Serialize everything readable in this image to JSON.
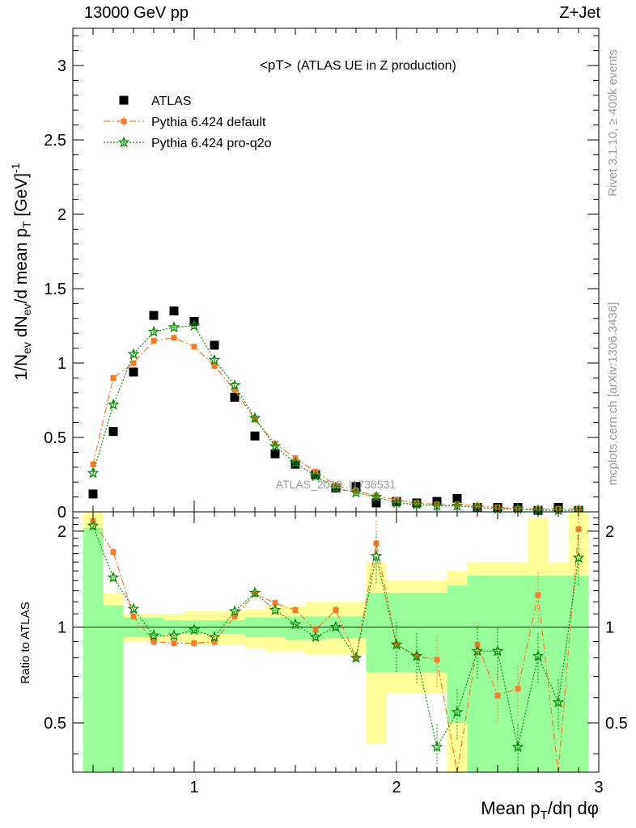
{
  "header": {
    "left": "13000 GeV pp",
    "right": "Z+Jet"
  },
  "side": {
    "rivet": "Rivet 3.1.10, ≥ 400k events",
    "mcplots": "mcplots.cern.ch [arXiv:1306.3436]"
  },
  "chart_data": [
    {
      "type": "scatter",
      "title_main": "<pT>",
      "title_sub": "(ATLAS UE in Z production)",
      "ylabel": "1/N_ev dN_ev/d mean p_T [GeV]^-1",
      "watermark": "ATLAS_2019_I1736531",
      "xlim": [
        0.4,
        3.0
      ],
      "ylim": [
        0,
        3.25
      ],
      "y_ticks": [
        0,
        0.5,
        1,
        1.5,
        2,
        2.5,
        3
      ],
      "y_tick_labels": [
        "0",
        "0.5",
        "1",
        "1.5",
        "2",
        "2.5",
        "3"
      ],
      "legend_position": "top-left",
      "x": [
        0.5,
        0.6,
        0.7,
        0.8,
        0.9,
        1.0,
        1.1,
        1.2,
        1.3,
        1.4,
        1.5,
        1.6,
        1.7,
        1.8,
        1.9,
        2.0,
        2.1,
        2.2,
        2.3,
        2.4,
        2.5,
        2.6,
        2.7,
        2.8,
        2.9
      ],
      "series": [
        {
          "name": "ATLAS",
          "color": "#000000",
          "marker": "square",
          "values": [
            0.12,
            0.54,
            0.94,
            1.32,
            1.35,
            1.28,
            1.12,
            0.77,
            0.51,
            0.39,
            0.32,
            0.25,
            0.16,
            0.17,
            0.06,
            0.07,
            0.06,
            0.07,
            0.09,
            0.03,
            0.03,
            0.03,
            0.01,
            0.03,
            0.01
          ]
        },
        {
          "name": "Pythia 6.424 default",
          "color": "#f27d2f",
          "marker": "square",
          "dash": "8,3,2,3",
          "values": [
            0.32,
            0.9,
            1.0,
            1.15,
            1.17,
            1.11,
            0.98,
            0.82,
            0.62,
            0.46,
            0.36,
            0.27,
            0.18,
            0.14,
            0.11,
            0.08,
            0.06,
            0.05,
            0.05,
            0.04,
            0.03,
            0.02,
            0.02,
            0.02,
            0.02
          ]
        },
        {
          "name": "Pythia 6.424 pro-q2o",
          "color": "#0f8a0f",
          "marker": "star",
          "dash": "2,2",
          "values": [
            0.26,
            0.72,
            1.06,
            1.21,
            1.24,
            1.25,
            1.02,
            0.85,
            0.63,
            0.44,
            0.33,
            0.24,
            0.16,
            0.13,
            0.1,
            0.06,
            0.05,
            0.04,
            0.04,
            0.03,
            0.02,
            0.02,
            0.01,
            0.01,
            0.01
          ]
        }
      ]
    },
    {
      "type": "scatter",
      "ylabel": "Ratio to ATLAS",
      "xlabel": "Mean p_T/dη dφ",
      "xlim": [
        0.4,
        3.0
      ],
      "ylim": [
        0.35,
        2.3
      ],
      "x_ticks": [
        1,
        2,
        3
      ],
      "x_tick_labels": [
        "1",
        "2",
        "3"
      ],
      "y_ticks": [
        0.5,
        1,
        2
      ],
      "y_tick_labels": [
        "0.5",
        "1",
        "2"
      ],
      "x": [
        0.5,
        0.6,
        0.7,
        0.8,
        0.9,
        1.0,
        1.1,
        1.2,
        1.3,
        1.4,
        1.5,
        1.6,
        1.7,
        1.8,
        1.9,
        2.0,
        2.1,
        2.2,
        2.3,
        2.4,
        2.5,
        2.6,
        2.7,
        2.8,
        2.9
      ],
      "bands": {
        "bin_edges": [
          0.45,
          0.55,
          0.65,
          0.75,
          0.85,
          0.95,
          1.05,
          1.15,
          1.25,
          1.35,
          1.45,
          1.55,
          1.65,
          1.75,
          1.85,
          1.95,
          2.05,
          2.15,
          2.25,
          2.35,
          2.45,
          2.55,
          2.65,
          2.75,
          2.85,
          2.95
        ],
        "stat_low": [
          0.35,
          0.35,
          0.93,
          0.93,
          0.95,
          0.95,
          0.95,
          0.95,
          0.93,
          0.93,
          0.91,
          0.91,
          0.92,
          0.92,
          0.72,
          0.72,
          0.72,
          0.72,
          0.5,
          0.35,
          0.35,
          0.35,
          0.35,
          0.35,
          0.35
        ],
        "stat_high": [
          2.05,
          1.17,
          1.07,
          1.07,
          1.05,
          1.05,
          1.05,
          1.05,
          1.07,
          1.07,
          1.08,
          1.08,
          1.08,
          1.08,
          1.28,
          1.28,
          1.28,
          1.28,
          1.35,
          1.45,
          1.45,
          1.45,
          1.45,
          1.45,
          1.45
        ],
        "total_low": [
          0.35,
          0.8,
          0.9,
          0.9,
          0.9,
          0.88,
          0.88,
          0.88,
          0.86,
          0.84,
          0.84,
          0.82,
          0.82,
          0.82,
          0.43,
          0.62,
          0.62,
          0.62,
          0.35,
          0.35,
          0.35,
          0.35,
          0.35,
          0.35,
          0.35
        ],
        "total_high": [
          2.3,
          1.28,
          1.1,
          1.1,
          1.1,
          1.12,
          1.12,
          1.12,
          1.14,
          1.16,
          1.16,
          1.2,
          1.2,
          1.2,
          1.6,
          1.4,
          1.4,
          1.4,
          1.5,
          1.6,
          1.6,
          1.6,
          2.2,
          1.6,
          2.3
        ]
      },
      "series": [
        {
          "name": "Pythia 6.424 default",
          "color": "#f27d2f",
          "marker": "square",
          "values": [
            2.15,
            1.72,
            1.08,
            0.9,
            0.89,
            0.89,
            0.9,
            1.08,
            1.27,
            1.19,
            1.13,
            0.98,
            1.13,
            0.8,
            1.83,
            0.88,
            0.81,
            0.79,
            0.3,
            0.88,
            0.61,
            0.64,
            1.26,
            0.3,
            2.03
          ]
        },
        {
          "name": "Pythia 6.424 pro-q2o",
          "color": "#0f8a0f",
          "marker": "star",
          "values": [
            2.08,
            1.43,
            1.14,
            0.94,
            0.94,
            0.98,
            0.93,
            1.12,
            1.28,
            1.13,
            1.02,
            0.93,
            1.0,
            0.8,
            1.67,
            0.88,
            0.81,
            0.42,
            0.54,
            0.84,
            0.84,
            0.42,
            0.81,
            0.58,
            1.65
          ]
        }
      ]
    }
  ]
}
